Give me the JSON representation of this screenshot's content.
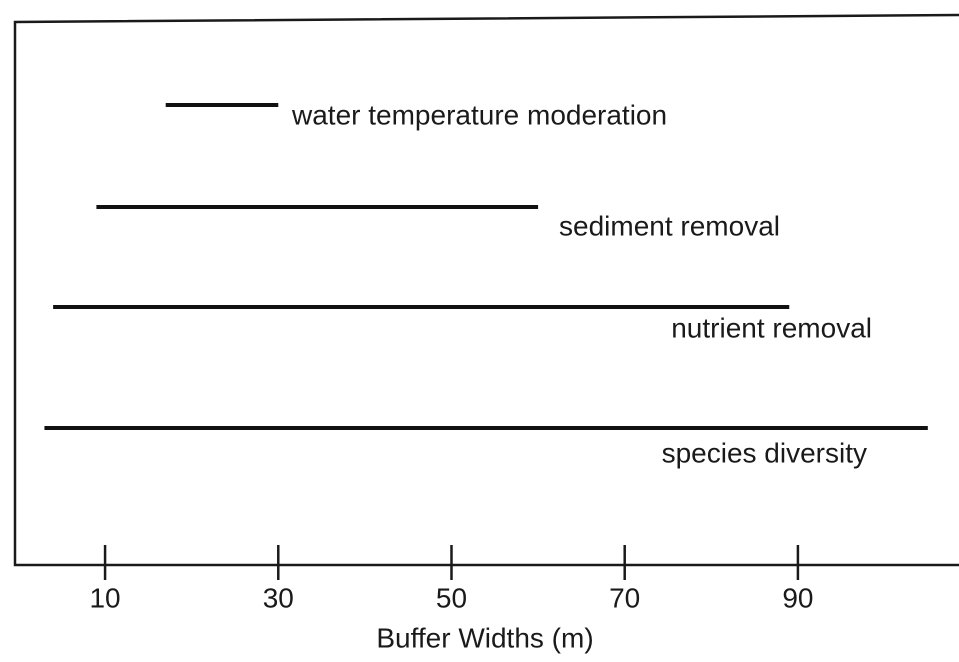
{
  "chart_data": {
    "type": "range",
    "categories": [
      "water temperature moderation",
      "sediment removal",
      "nutrient removal",
      "species diversity"
    ],
    "values": [
      [
        17,
        30
      ],
      [
        9,
        60
      ],
      [
        4,
        89
      ],
      [
        3,
        105
      ]
    ],
    "color": "#111111",
    "xlabel": "Buffer Widths (m)",
    "xlim": [
      -0.4,
      108.6
    ],
    "xticks": [
      10,
      30,
      50,
      70,
      90
    ]
  }
}
